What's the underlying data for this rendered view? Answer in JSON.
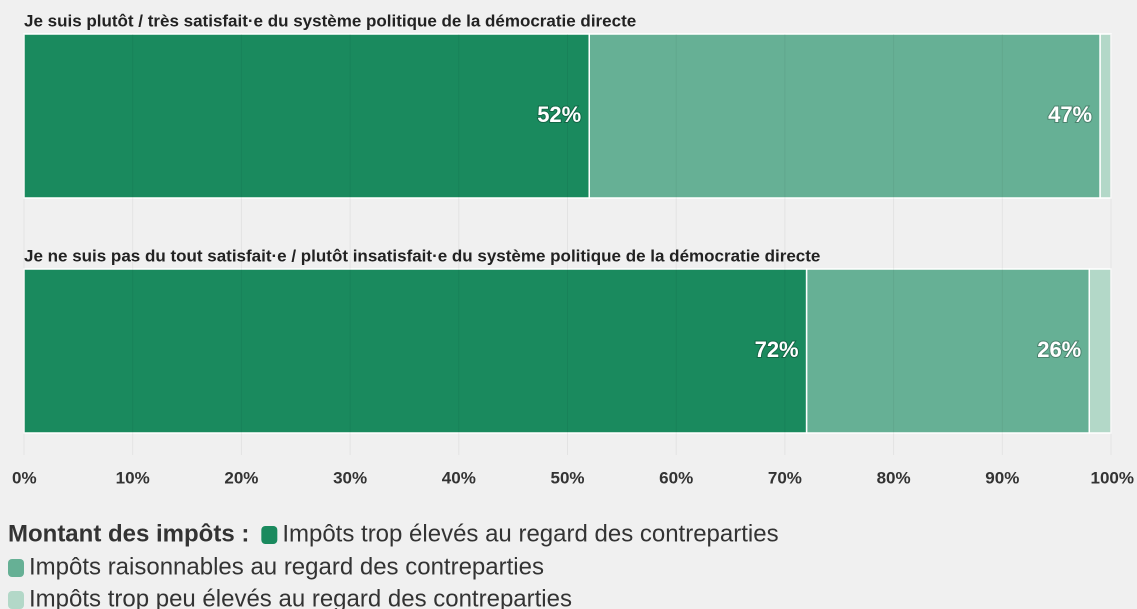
{
  "chart_data": {
    "type": "stacked_bar_horizontal",
    "categories": [
      "Je suis plutôt / très satisfait·e du système politique de la démocratie directe",
      "Je ne suis pas du tout satisfait·e / plutôt insatisfait·e du système politique de la démocratie directe"
    ],
    "series": [
      {
        "name": "Impôts trop élevés au regard des contreparties",
        "color": "#1a8a5e",
        "values": [
          52,
          72
        ],
        "value_labels": [
          "52%",
          "72%"
        ]
      },
      {
        "name": "Impôts raisonnables au regard des contreparties",
        "color": "#66b095",
        "values": [
          47,
          26
        ],
        "value_labels": [
          "47%",
          "26%"
        ]
      },
      {
        "name": "Impôts trop peu élevés au regard des contreparties",
        "color": "#b3d8c8",
        "values": [
          1,
          2
        ]
      }
    ],
    "xlim": [
      0,
      100
    ],
    "xticks": [
      {
        "value": 0,
        "label": "0%"
      },
      {
        "value": 10,
        "label": "10%"
      },
      {
        "value": 20,
        "label": "20%"
      },
      {
        "value": 30,
        "label": "30%"
      },
      {
        "value": 40,
        "label": "40%"
      },
      {
        "value": 50,
        "label": "50%"
      },
      {
        "value": 60,
        "label": "60%"
      },
      {
        "value": 70,
        "label": "70%"
      },
      {
        "value": 80,
        "label": "80%"
      },
      {
        "value": 90,
        "label": "90%"
      },
      {
        "value": 100,
        "label": "100%"
      }
    ],
    "grid": true,
    "legend_title": "Montant des impôts :"
  }
}
